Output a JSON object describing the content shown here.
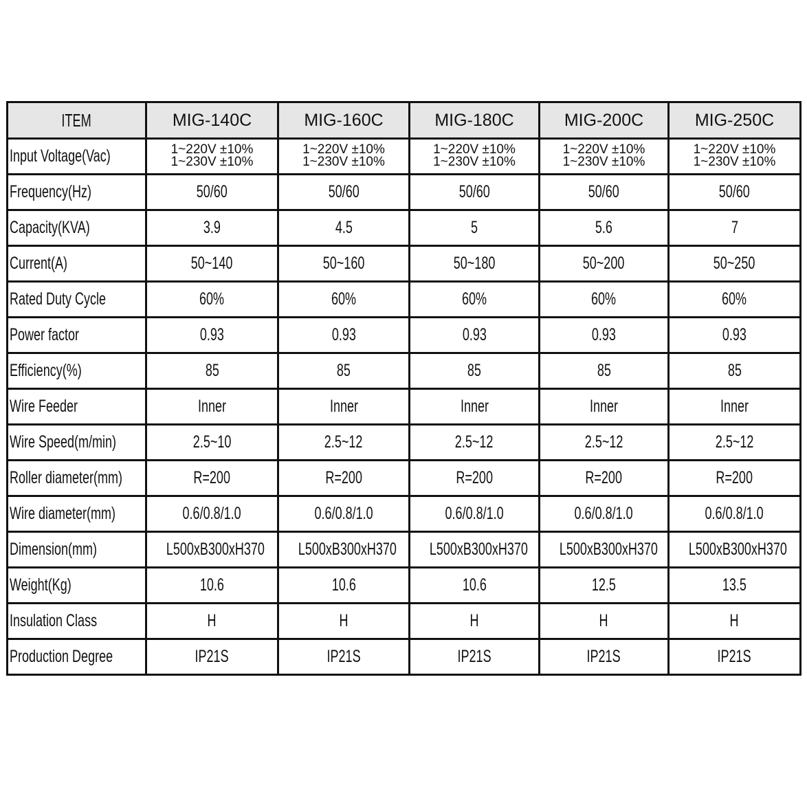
{
  "table": {
    "header": [
      "ITEM",
      "MIG-140C",
      "MIG-160C",
      "MIG-180C",
      "MIG-200C",
      "MIG-250C"
    ],
    "input_voltage": {
      "label": "Input Voltage(Vac)",
      "line1": "1~220V ±10%",
      "line2": "1~230V ±10%"
    },
    "rows": [
      {
        "label": "Frequency(Hz)",
        "values": [
          "50/60",
          "50/60",
          "50/60",
          "50/60",
          "50/60"
        ]
      },
      {
        "label": "Capacity(KVA)",
        "values": [
          "3.9",
          "4.5",
          "5",
          "5.6",
          "7"
        ]
      },
      {
        "label": "Current(A)",
        "values": [
          "50~140",
          "50~160",
          "50~180",
          "50~200",
          "50~250"
        ]
      },
      {
        "label": "Rated Duty Cycle",
        "values": [
          "60%",
          "60%",
          "60%",
          "60%",
          "60%"
        ]
      },
      {
        "label": "Power factor",
        "values": [
          "0.93",
          "0.93",
          "0.93",
          "0.93",
          "0.93"
        ]
      },
      {
        "label": "Efficiency(%)",
        "values": [
          "85",
          "85",
          "85",
          "85",
          "85"
        ]
      },
      {
        "label": "Wire Feeder",
        "values": [
          "Inner",
          "Inner",
          "Inner",
          "Inner",
          "Inner"
        ]
      },
      {
        "label": "Wire Speed(m/min)",
        "values": [
          "2.5~10",
          "2.5~12",
          "2.5~12",
          "2.5~12",
          "2.5~12"
        ]
      },
      {
        "label": "Roller diameter(mm)",
        "values": [
          "R=200",
          "R=200",
          "R=200",
          "R=200",
          "R=200"
        ]
      },
      {
        "label": "Wire diameter(mm)",
        "values": [
          "0.6/0.8/1.0",
          "0.6/0.8/1.0",
          "0.6/0.8/1.0",
          "0.6/0.8/1.0",
          "0.6/0.8/1.0"
        ]
      },
      {
        "label": "Dimension(mm)",
        "values": [
          "L500xB300xH370",
          "L500xB300xH370",
          "L500xB300xH370",
          "L500xB300xH370",
          "L500xB300xH370"
        ]
      },
      {
        "label": "Weight(Kg)",
        "values": [
          "10.6",
          "10.6",
          "10.6",
          "12.5",
          "13.5"
        ]
      },
      {
        "label": "Insulation Class",
        "values": [
          "H",
          "H",
          "H",
          "H",
          "H"
        ]
      },
      {
        "label": "Production Degree",
        "values": [
          "IP21S",
          "IP21S",
          "IP21S",
          "IP21S",
          "IP21S"
        ]
      }
    ]
  }
}
